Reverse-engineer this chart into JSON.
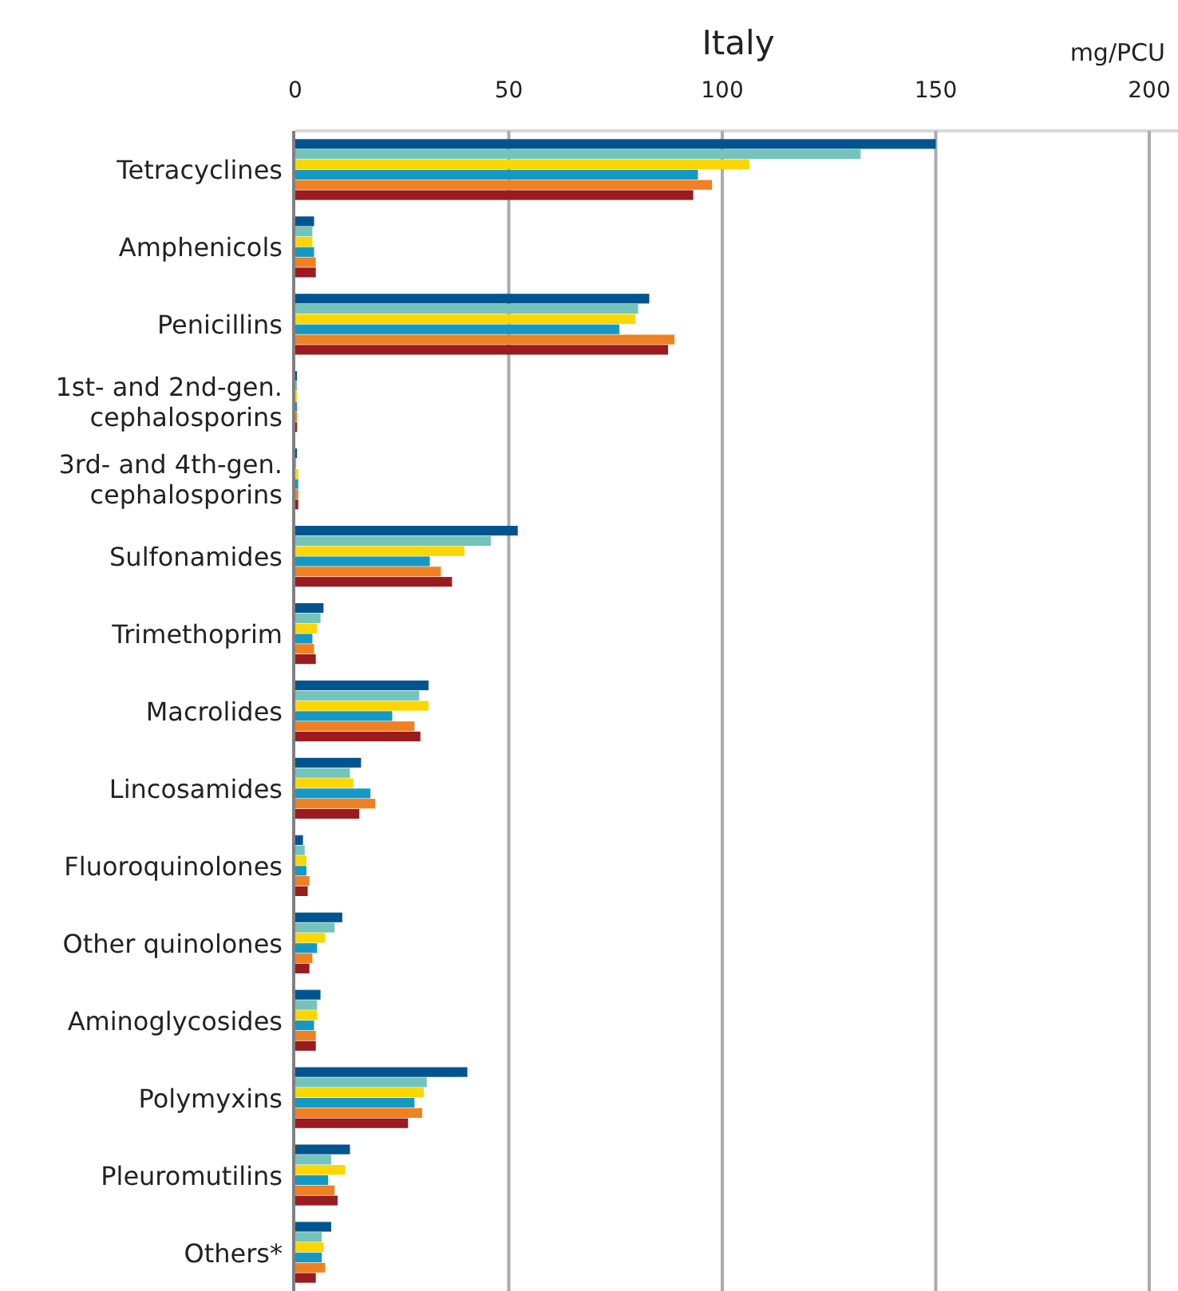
{
  "chart_data": {
    "type": "bar",
    "orientation": "horizontal",
    "title": "Italy",
    "xlabel": "mg/PCU",
    "categories": [
      "Tetracyclines",
      "Amphenicols",
      "Penicillins",
      "1st- and 2nd-gen. cephalosporins",
      "3rd- and 4th-gen. cephalosporins",
      "Sulfonamides",
      "Trimethoprim",
      "Macrolides",
      "Lincosamides",
      "Fluoroquinolones",
      "Other quinolones",
      "Aminoglycosides",
      "Polymyxins",
      "Pleuromutilins",
      "Others*"
    ],
    "series": [
      {
        "color": "#00558f",
        "values": [
          150,
          4.4,
          82.9,
          0.4,
          0.4,
          52.1,
          6.6,
          31.2,
          15.4,
          1.8,
          11.0,
          5.9,
          40.3,
          12.8,
          8.4
        ]
      },
      {
        "color": "#74c4bb",
        "values": [
          132.4,
          4.0,
          80.3,
          0.4,
          0.2,
          45.8,
          5.9,
          29.0,
          12.8,
          2.2,
          9.2,
          5.1,
          30.8,
          8.4,
          6.2
        ]
      },
      {
        "color": "#fcd600",
        "values": [
          106.4,
          4.0,
          79.6,
          0.4,
          0.7,
          39.6,
          5.1,
          31.2,
          13.6,
          2.6,
          7.0,
          5.1,
          30.1,
          11.7,
          6.6
        ]
      },
      {
        "color": "#1499c7",
        "values": [
          94.3,
          4.4,
          75.9,
          0.4,
          0.7,
          31.5,
          4.0,
          22.7,
          17.6,
          2.6,
          5.1,
          4.4,
          27.9,
          7.7,
          6.2
        ]
      },
      {
        "color": "#ef8123",
        "values": [
          97.6,
          4.8,
          88.8,
          0.4,
          0.7,
          34.1,
          4.4,
          27.9,
          18.7,
          3.3,
          4.0,
          4.8,
          29.7,
          9.2,
          7.0
        ]
      },
      {
        "color": "#9a1b20",
        "values": [
          93.2,
          4.8,
          87.3,
          0.4,
          0.7,
          36.7,
          4.8,
          29.3,
          15.0,
          2.9,
          3.3,
          4.8,
          26.4,
          9.9,
          4.8
        ]
      }
    ],
    "xlim": [
      0,
      200
    ],
    "xticks": [
      0,
      50,
      100,
      150,
      200
    ],
    "grid": "x"
  }
}
